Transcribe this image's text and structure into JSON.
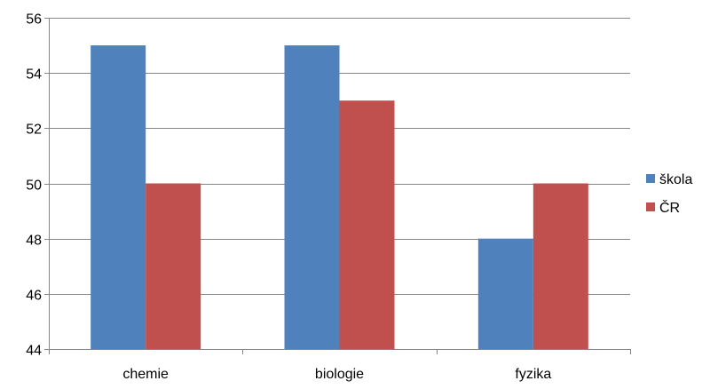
{
  "chart_data": {
    "type": "bar",
    "categories": [
      "chemie",
      "biologie",
      "fyzika"
    ],
    "series": [
      {
        "name": "škola",
        "values": [
          55,
          55,
          48
        ],
        "color": "#4f81bd"
      },
      {
        "name": "ČR",
        "values": [
          50,
          53,
          50
        ],
        "color": "#c0504d"
      }
    ],
    "ylim": [
      44,
      56
    ],
    "yticks": [
      44,
      46,
      48,
      50,
      52,
      54,
      56
    ],
    "grid": true,
    "legend_position": "right",
    "title": "",
    "xlabel": "",
    "ylabel": ""
  },
  "colors": {
    "gridline": "#868686",
    "axis": "#868686"
  }
}
